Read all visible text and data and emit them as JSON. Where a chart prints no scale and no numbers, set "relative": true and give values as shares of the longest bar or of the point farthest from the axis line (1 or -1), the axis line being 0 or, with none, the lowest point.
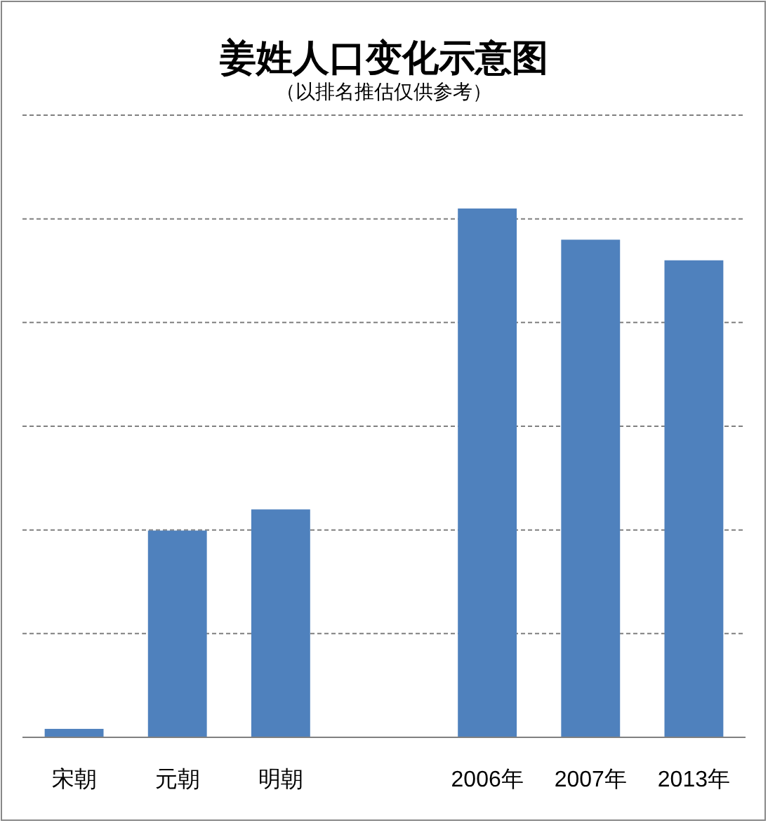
{
  "chart_data": {
    "type": "bar",
    "title": "姜姓人口变化示意图",
    "subtitle": "（以排名推估仅供参考）",
    "categories": [
      "宋朝",
      "元朝",
      "明朝",
      null,
      "2006年",
      "2007年",
      "2013年"
    ],
    "values": [
      0.016,
      0.391,
      0.431,
      null,
      1,
      0.941,
      0.902
    ],
    "color": "#4f81bd",
    "relative": true,
    "grid": "y"
  }
}
